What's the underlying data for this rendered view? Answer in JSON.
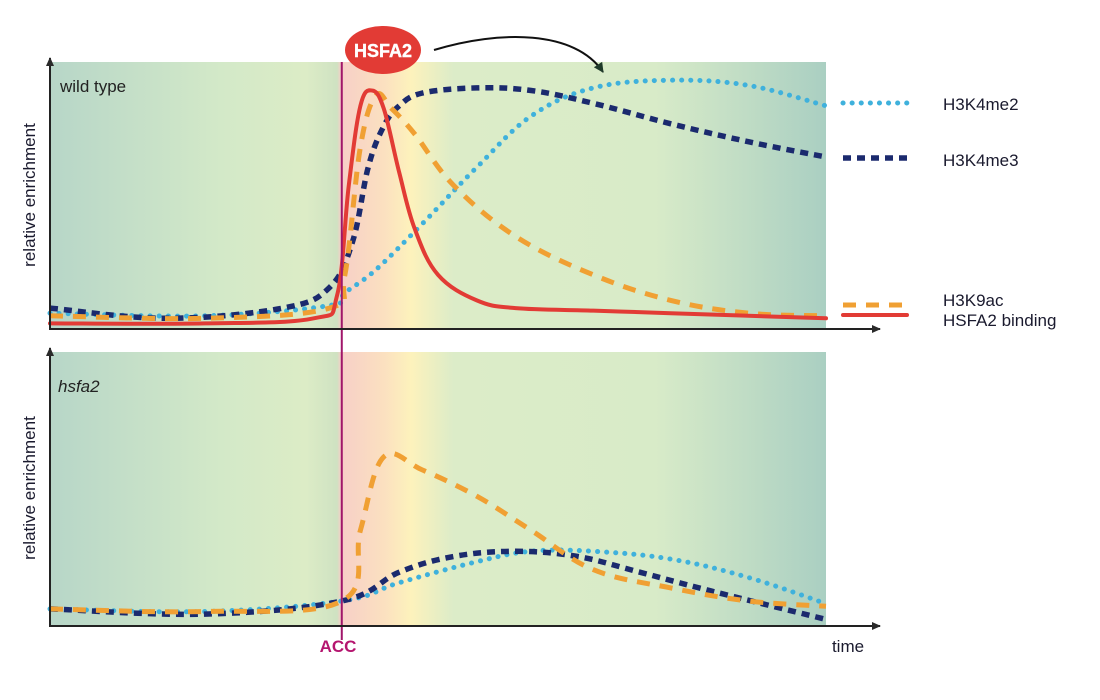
{
  "chart_data": {
    "type": "line",
    "title": "",
    "xlabel": "time",
    "ylabel": "relative enrichment",
    "xlim": [
      0,
      100
    ],
    "ylim": [
      0,
      1
    ],
    "grid": false,
    "event_marker": {
      "label": "ACC",
      "x": 37.6,
      "color": "#b5156f"
    },
    "annotation": {
      "label": "HSFA2",
      "color": "#e23b35",
      "arrow_to_x": 70
    },
    "legend": {
      "placement": "right",
      "entries": [
        {
          "key": "H3K4me2",
          "label": "H3K4me2",
          "color": "#3fb1dc",
          "style": "dotted"
        },
        {
          "key": "H3K4me3",
          "label": "H3K4me3",
          "color": "#1b2a6e",
          "style": "dashed"
        },
        {
          "key": "H3K9ac",
          "label": "H3K9ac",
          "color": "#f0a033",
          "style": "dashed"
        },
        {
          "key": "HSFA2",
          "label": "HSFA2 binding",
          "color": "#e23b35",
          "style": "solid"
        }
      ]
    },
    "panels": [
      {
        "name": "wild-type",
        "label": "wild type",
        "label_italic": false,
        "series": [
          {
            "key": "H3K4me2",
            "x": [
              0,
              20,
              36,
              38,
              42,
              48,
              55,
              62,
              70,
              80,
              90,
              100
            ],
            "y": [
              0.05,
              0.04,
              0.08,
              0.13,
              0.22,
              0.4,
              0.62,
              0.82,
              0.93,
              0.96,
              0.94,
              0.86
            ]
          },
          {
            "key": "H3K4me3",
            "x": [
              0,
              15,
              30,
              36,
              39,
              41,
              43,
              45,
              48,
              55,
              62,
              70,
              80,
              90,
              100
            ],
            "y": [
              0.07,
              0.03,
              0.07,
              0.15,
              0.33,
              0.62,
              0.78,
              0.86,
              0.91,
              0.93,
              0.92,
              0.87,
              0.79,
              0.72,
              0.66
            ]
          },
          {
            "key": "H3K9ac",
            "x": [
              0,
              20,
              36,
              38,
              40,
              42,
              44,
              47,
              52,
              60,
              70,
              80,
              90,
              100
            ],
            "y": [
              0.04,
              0.03,
              0.07,
              0.2,
              0.7,
              0.9,
              0.85,
              0.75,
              0.55,
              0.35,
              0.2,
              0.1,
              0.05,
              0.04
            ]
          },
          {
            "key": "HSFA2",
            "x": [
              0,
              20,
              34,
              37,
              38.5,
              40,
              41.5,
              43,
              45,
              47,
              50,
              55,
              60,
              70,
              80,
              100
            ],
            "y": [
              0.01,
              0.01,
              0.03,
              0.12,
              0.55,
              0.86,
              0.92,
              0.85,
              0.6,
              0.38,
              0.2,
              0.1,
              0.07,
              0.06,
              0.05,
              0.03
            ]
          }
        ]
      },
      {
        "name": "hsfa2-mutant",
        "label": "hsfa2",
        "label_italic": true,
        "series": [
          {
            "key": "H3K4me2",
            "x": [
              0,
              20,
              37.6,
              45,
              55,
              62,
              70,
              80,
              90,
              100
            ],
            "y": [
              0.05,
              0.04,
              0.08,
              0.15,
              0.23,
              0.27,
              0.27,
              0.24,
              0.17,
              0.07
            ]
          },
          {
            "key": "H3K4me3",
            "x": [
              0,
              20,
              37.6,
              45,
              52,
              60,
              68,
              76,
              85,
              100
            ],
            "y": [
              0.05,
              0.03,
              0.08,
              0.19,
              0.25,
              0.27,
              0.25,
              0.19,
              0.12,
              0.01
            ]
          },
          {
            "key": "H3K9ac",
            "x": [
              0,
              20,
              37.6,
              40,
              43,
              48,
              55,
              62,
              70,
              80,
              90,
              100
            ],
            "y": [
              0.05,
              0.04,
              0.08,
              0.35,
              0.63,
              0.58,
              0.48,
              0.35,
              0.2,
              0.13,
              0.08,
              0.06
            ]
          }
        ]
      }
    ]
  }
}
